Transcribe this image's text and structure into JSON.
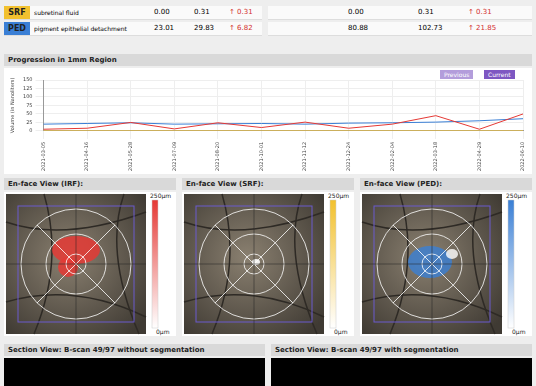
{
  "table": {
    "rows": [
      {
        "label": "SRF",
        "color": "#f2c12e",
        "name": "subretinal fluid",
        "cells": [
          "0.00",
          "0.31",
          "↑ 0.31",
          "0.00",
          "0.31",
          "↑ 0.31"
        ]
      },
      {
        "label": "PED",
        "color": "#3a7fd5",
        "name": "pigment epithelial detachment",
        "cells": [
          "23.01",
          "29.83",
          "↑ 6.82",
          "80.88",
          "102.73",
          "↑ 21.85"
        ]
      }
    ]
  },
  "chart_data": {
    "type": "line",
    "title": "Progression in 1mm Region",
    "y_label": "Volume (in Nanoliters)",
    "legend": "top-right",
    "legend_items": [
      "Previous",
      "Current"
    ],
    "categories": [
      "2021-03-05",
      "2021-04-16",
      "2021-05-28",
      "2021-07-09",
      "2021-08-20",
      "2021-10-01",
      "2021-11-12",
      "2021-12-24",
      "2022-02-04",
      "2022-03-18",
      "2022-04-29",
      "2022-06-10"
    ],
    "series": [
      {
        "color": "#e53935",
        "values": [
          5,
          8,
          25,
          6,
          24,
          10,
          26,
          8,
          20,
          45,
          5,
          50
        ]
      },
      {
        "color": "#f2c12e",
        "values": [
          0,
          0,
          0,
          0,
          0,
          0,
          0,
          0,
          0,
          0,
          0,
          0
        ]
      },
      {
        "color": "#3a7fd5",
        "values": [
          20,
          22,
          24,
          20,
          21,
          22,
          20,
          23,
          24,
          26,
          30,
          36
        ]
      }
    ],
    "ylim": [
      0,
      150
    ],
    "yticks": [
      0,
      25,
      50,
      75,
      100,
      125,
      150
    ],
    "grid": true
  },
  "enface_views": [
    {
      "title": "En-face View (IRF):",
      "color": "#e53935",
      "scale_max": "250µm",
      "scale_min": "0µm"
    },
    {
      "title": "En-face View (SRF):",
      "color": "#f2c12e",
      "scale_max": "250µm",
      "scale_min": "0µm"
    },
    {
      "title": "En-face View (PED):",
      "color": "#3a7fd5",
      "scale_max": "250µm",
      "scale_min": "0µm"
    }
  ],
  "section_views": [
    "Section View: B-scan 49/97 without segmentation",
    "Section View: B-scan 49/97 with segmentation"
  ]
}
